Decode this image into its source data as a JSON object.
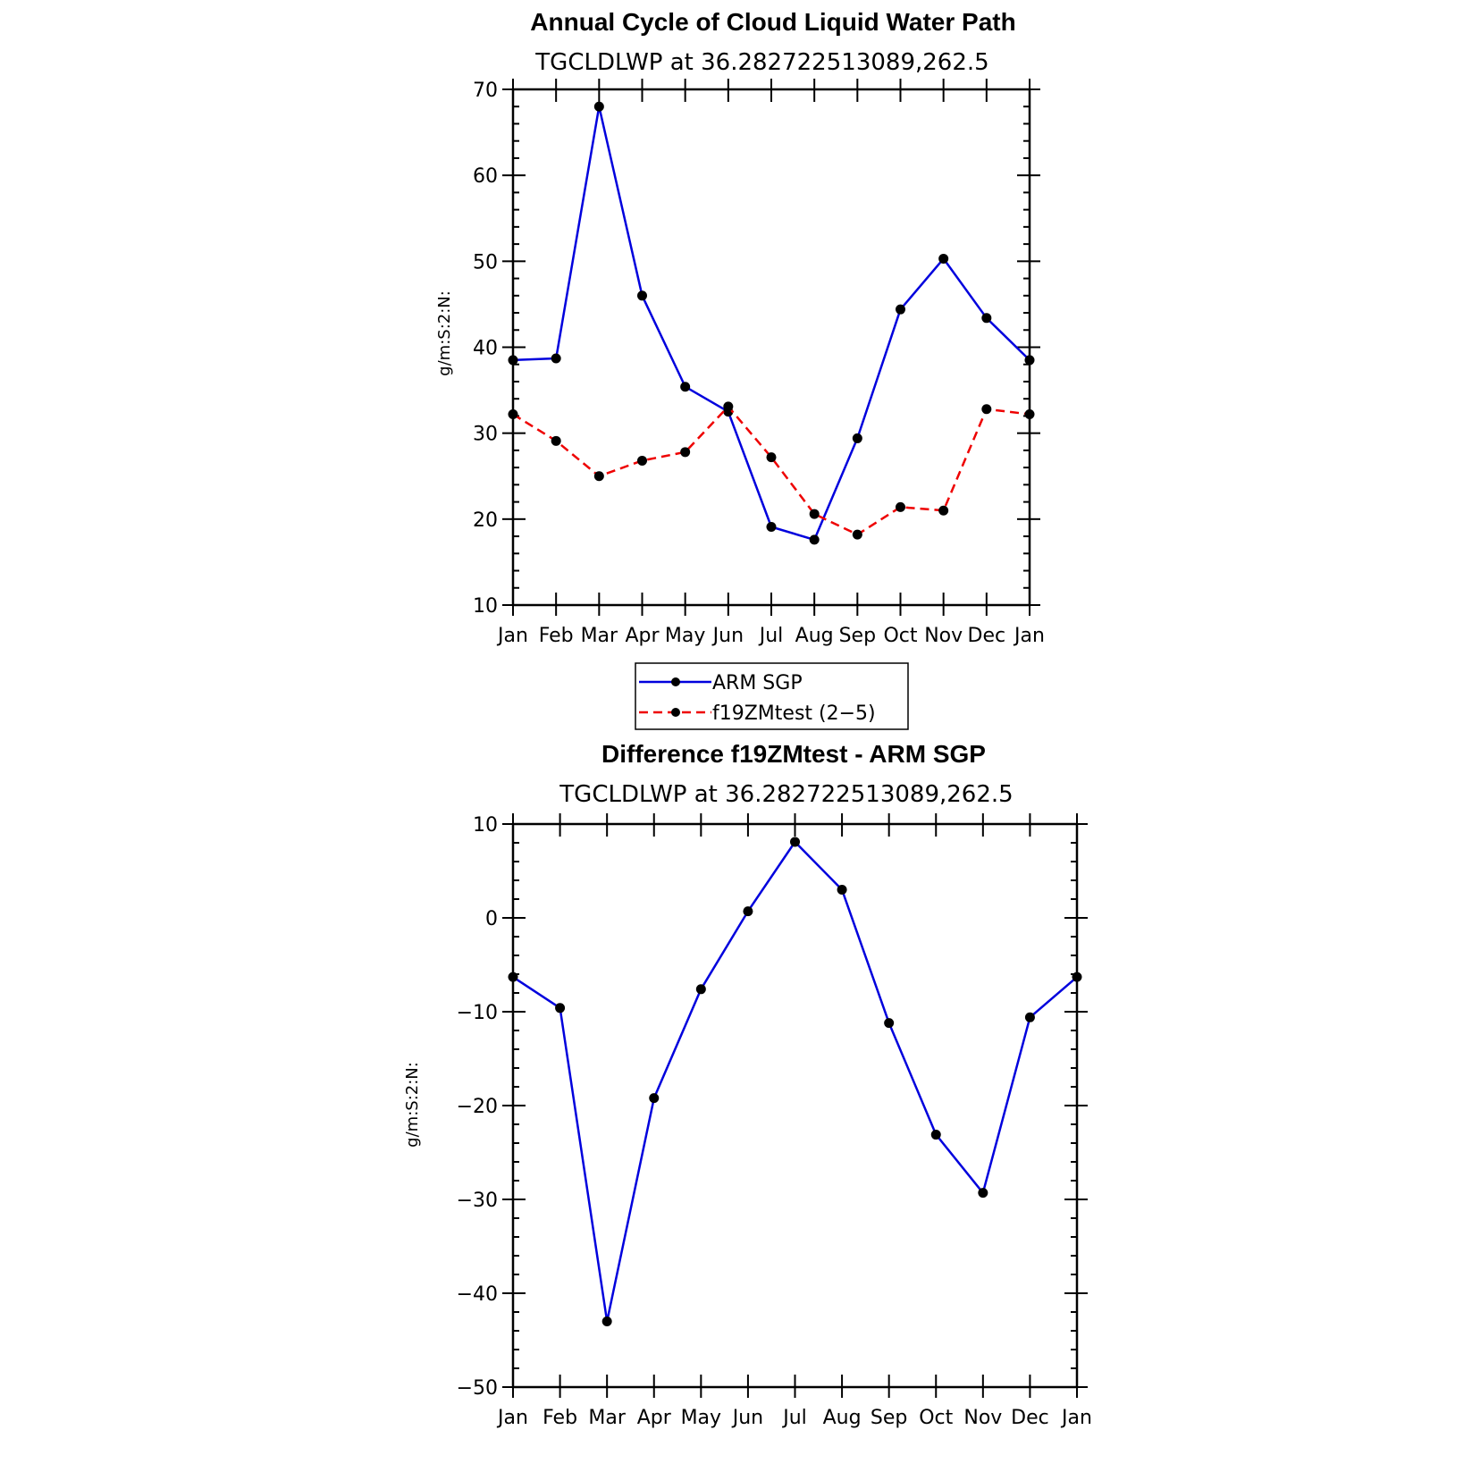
{
  "chart_data": [
    {
      "type": "line",
      "title": "Annual Cycle of Cloud Liquid Water Path",
      "subtitle": "TGCLDLWP at 36.282722513089,262.5",
      "xlabel": "",
      "ylabel": "g/m:S:2:N:",
      "categories": [
        "Jan",
        "Feb",
        "Mar",
        "Apr",
        "May",
        "Jun",
        "Jul",
        "Aug",
        "Sep",
        "Oct",
        "Nov",
        "Dec",
        "Jan"
      ],
      "ylim": [
        10,
        70
      ],
      "yticks": [
        "10",
        "20",
        "30",
        "40",
        "50",
        "60",
        "70"
      ],
      "series": [
        {
          "name": "ARM SGP",
          "color": "#0000dd",
          "dash": "solid",
          "values": [
            38.5,
            38.7,
            68.0,
            46.0,
            35.4,
            32.5,
            19.1,
            17.6,
            29.4,
            44.4,
            50.3,
            43.4,
            38.5
          ]
        },
        {
          "name": "f19ZMtest (2−5)",
          "color": "#ee0000",
          "dash": "dashed",
          "values": [
            32.2,
            29.1,
            25.0,
            26.8,
            27.8,
            33.1,
            27.2,
            20.6,
            18.2,
            21.4,
            21.0,
            32.8,
            32.2
          ]
        }
      ],
      "legend": [
        "ARM SGP",
        "f19ZMtest (2−5)"
      ],
      "legend_position": "below"
    },
    {
      "type": "line",
      "title": "Difference f19ZMtest - ARM SGP",
      "subtitle": "TGCLDLWP at 36.282722513089,262.5",
      "xlabel": "",
      "ylabel": "g/m:S:2:N:",
      "categories": [
        "Jan",
        "Feb",
        "Mar",
        "Apr",
        "May",
        "Jun",
        "Jul",
        "Aug",
        "Sep",
        "Oct",
        "Nov",
        "Dec",
        "Jan"
      ],
      "ylim": [
        -50,
        10
      ],
      "yticks": [
        "−50",
        "−40",
        "−30",
        "−20",
        "−10",
        "0",
        "10"
      ],
      "series": [
        {
          "name": "f19ZMtest - ARM SGP",
          "color": "#0000dd",
          "dash": "solid",
          "values": [
            -6.3,
            -9.6,
            -43.0,
            -19.2,
            -7.6,
            0.7,
            8.1,
            3.0,
            -11.2,
            -23.1,
            -29.3,
            -10.6,
            -6.3
          ]
        }
      ]
    }
  ]
}
